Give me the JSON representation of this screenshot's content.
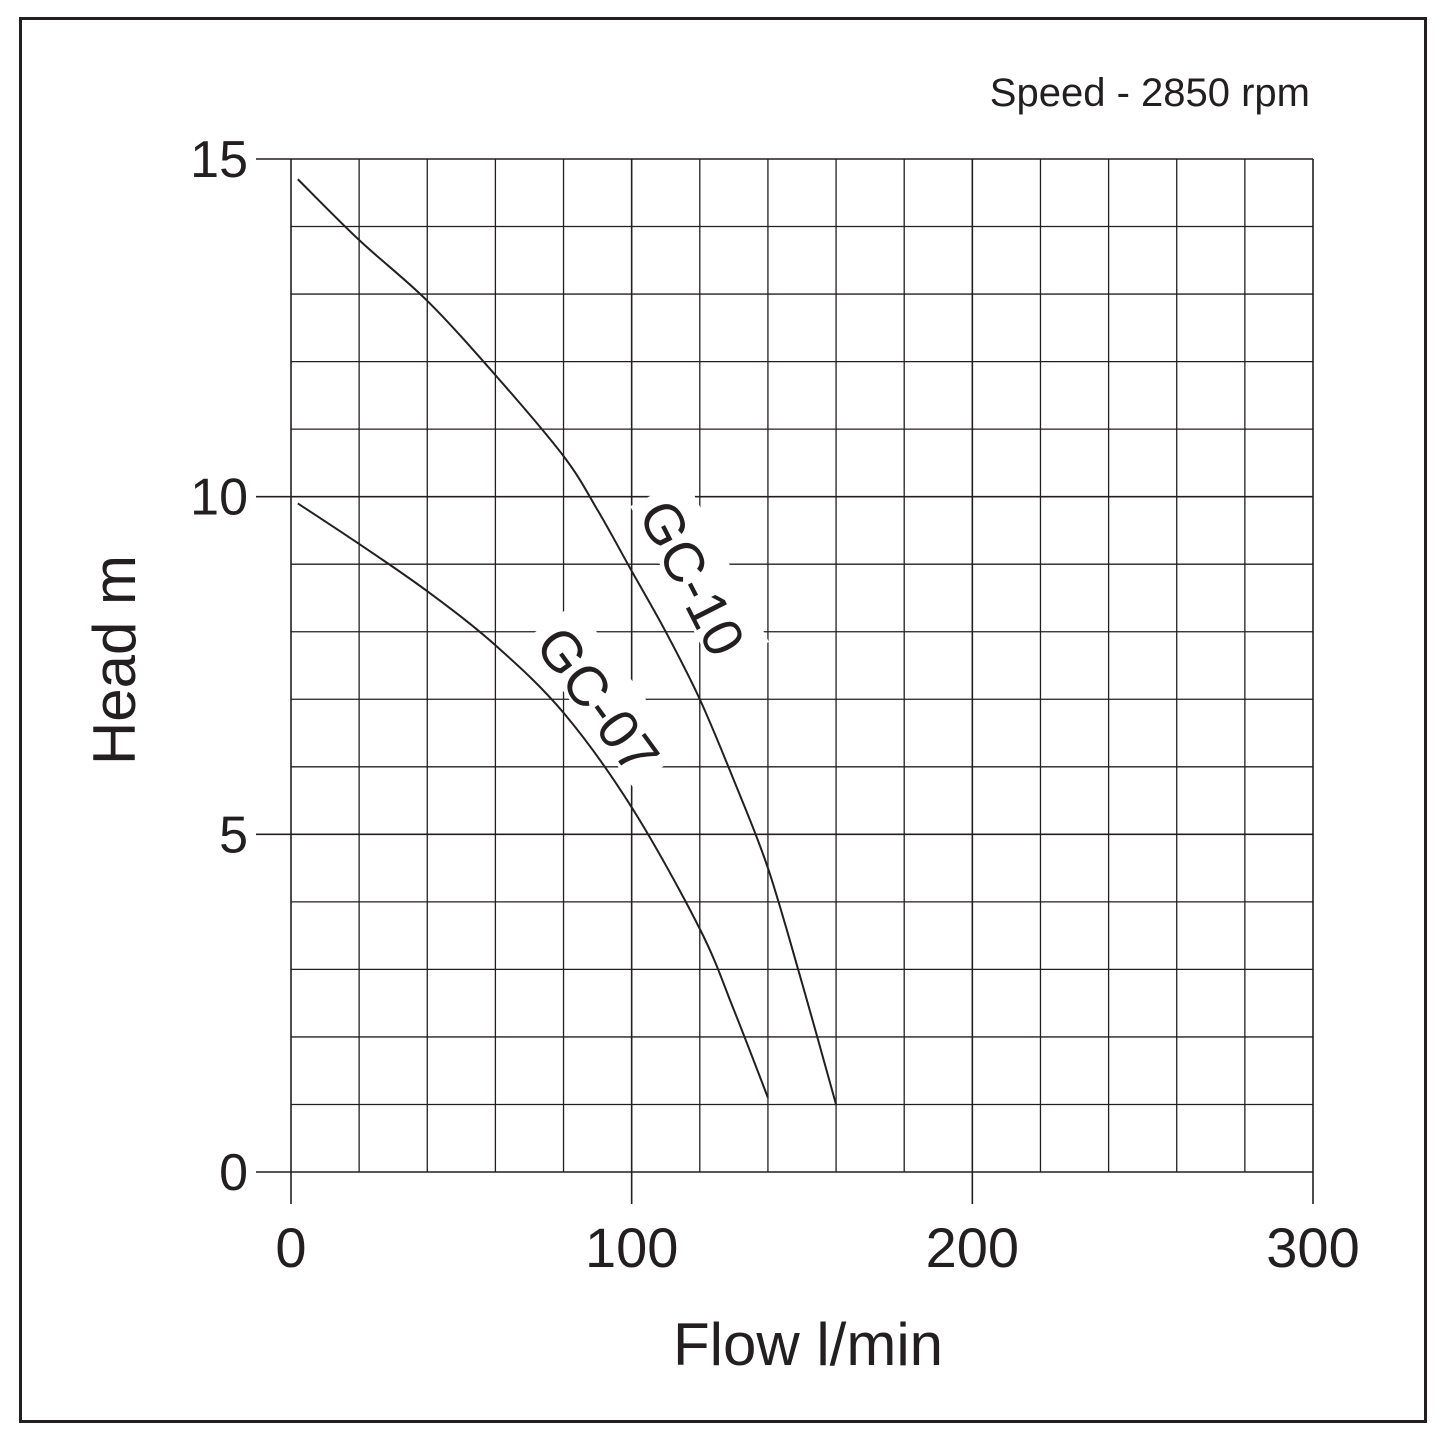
{
  "chart_data": {
    "type": "line",
    "title": "",
    "annotation": "Speed - 2850 rpm",
    "xlabel": "Flow l/min",
    "ylabel": "Head m",
    "xlim": [
      0,
      300
    ],
    "ylim": [
      0,
      15
    ],
    "xticks": [
      "0",
      "100",
      "200",
      "300"
    ],
    "yticks": [
      "0",
      "5",
      "10",
      "15"
    ],
    "grid": true,
    "legend": "none",
    "series": [
      {
        "name": "GC-10",
        "x": [
          2,
          20,
          40,
          60,
          80,
          90,
          100,
          110,
          120,
          130,
          140,
          150,
          160
        ],
        "y": [
          14.7,
          13.8,
          12.9,
          11.8,
          10.6,
          9.8,
          8.9,
          8.0,
          7.0,
          5.8,
          4.5,
          2.8,
          1.0
        ]
      },
      {
        "name": "GC-07",
        "x": [
          2,
          20,
          40,
          60,
          80,
          100,
          120,
          130,
          140
        ],
        "y": [
          9.9,
          9.3,
          8.6,
          7.8,
          6.8,
          5.4,
          3.6,
          2.4,
          1.1
        ]
      }
    ]
  }
}
